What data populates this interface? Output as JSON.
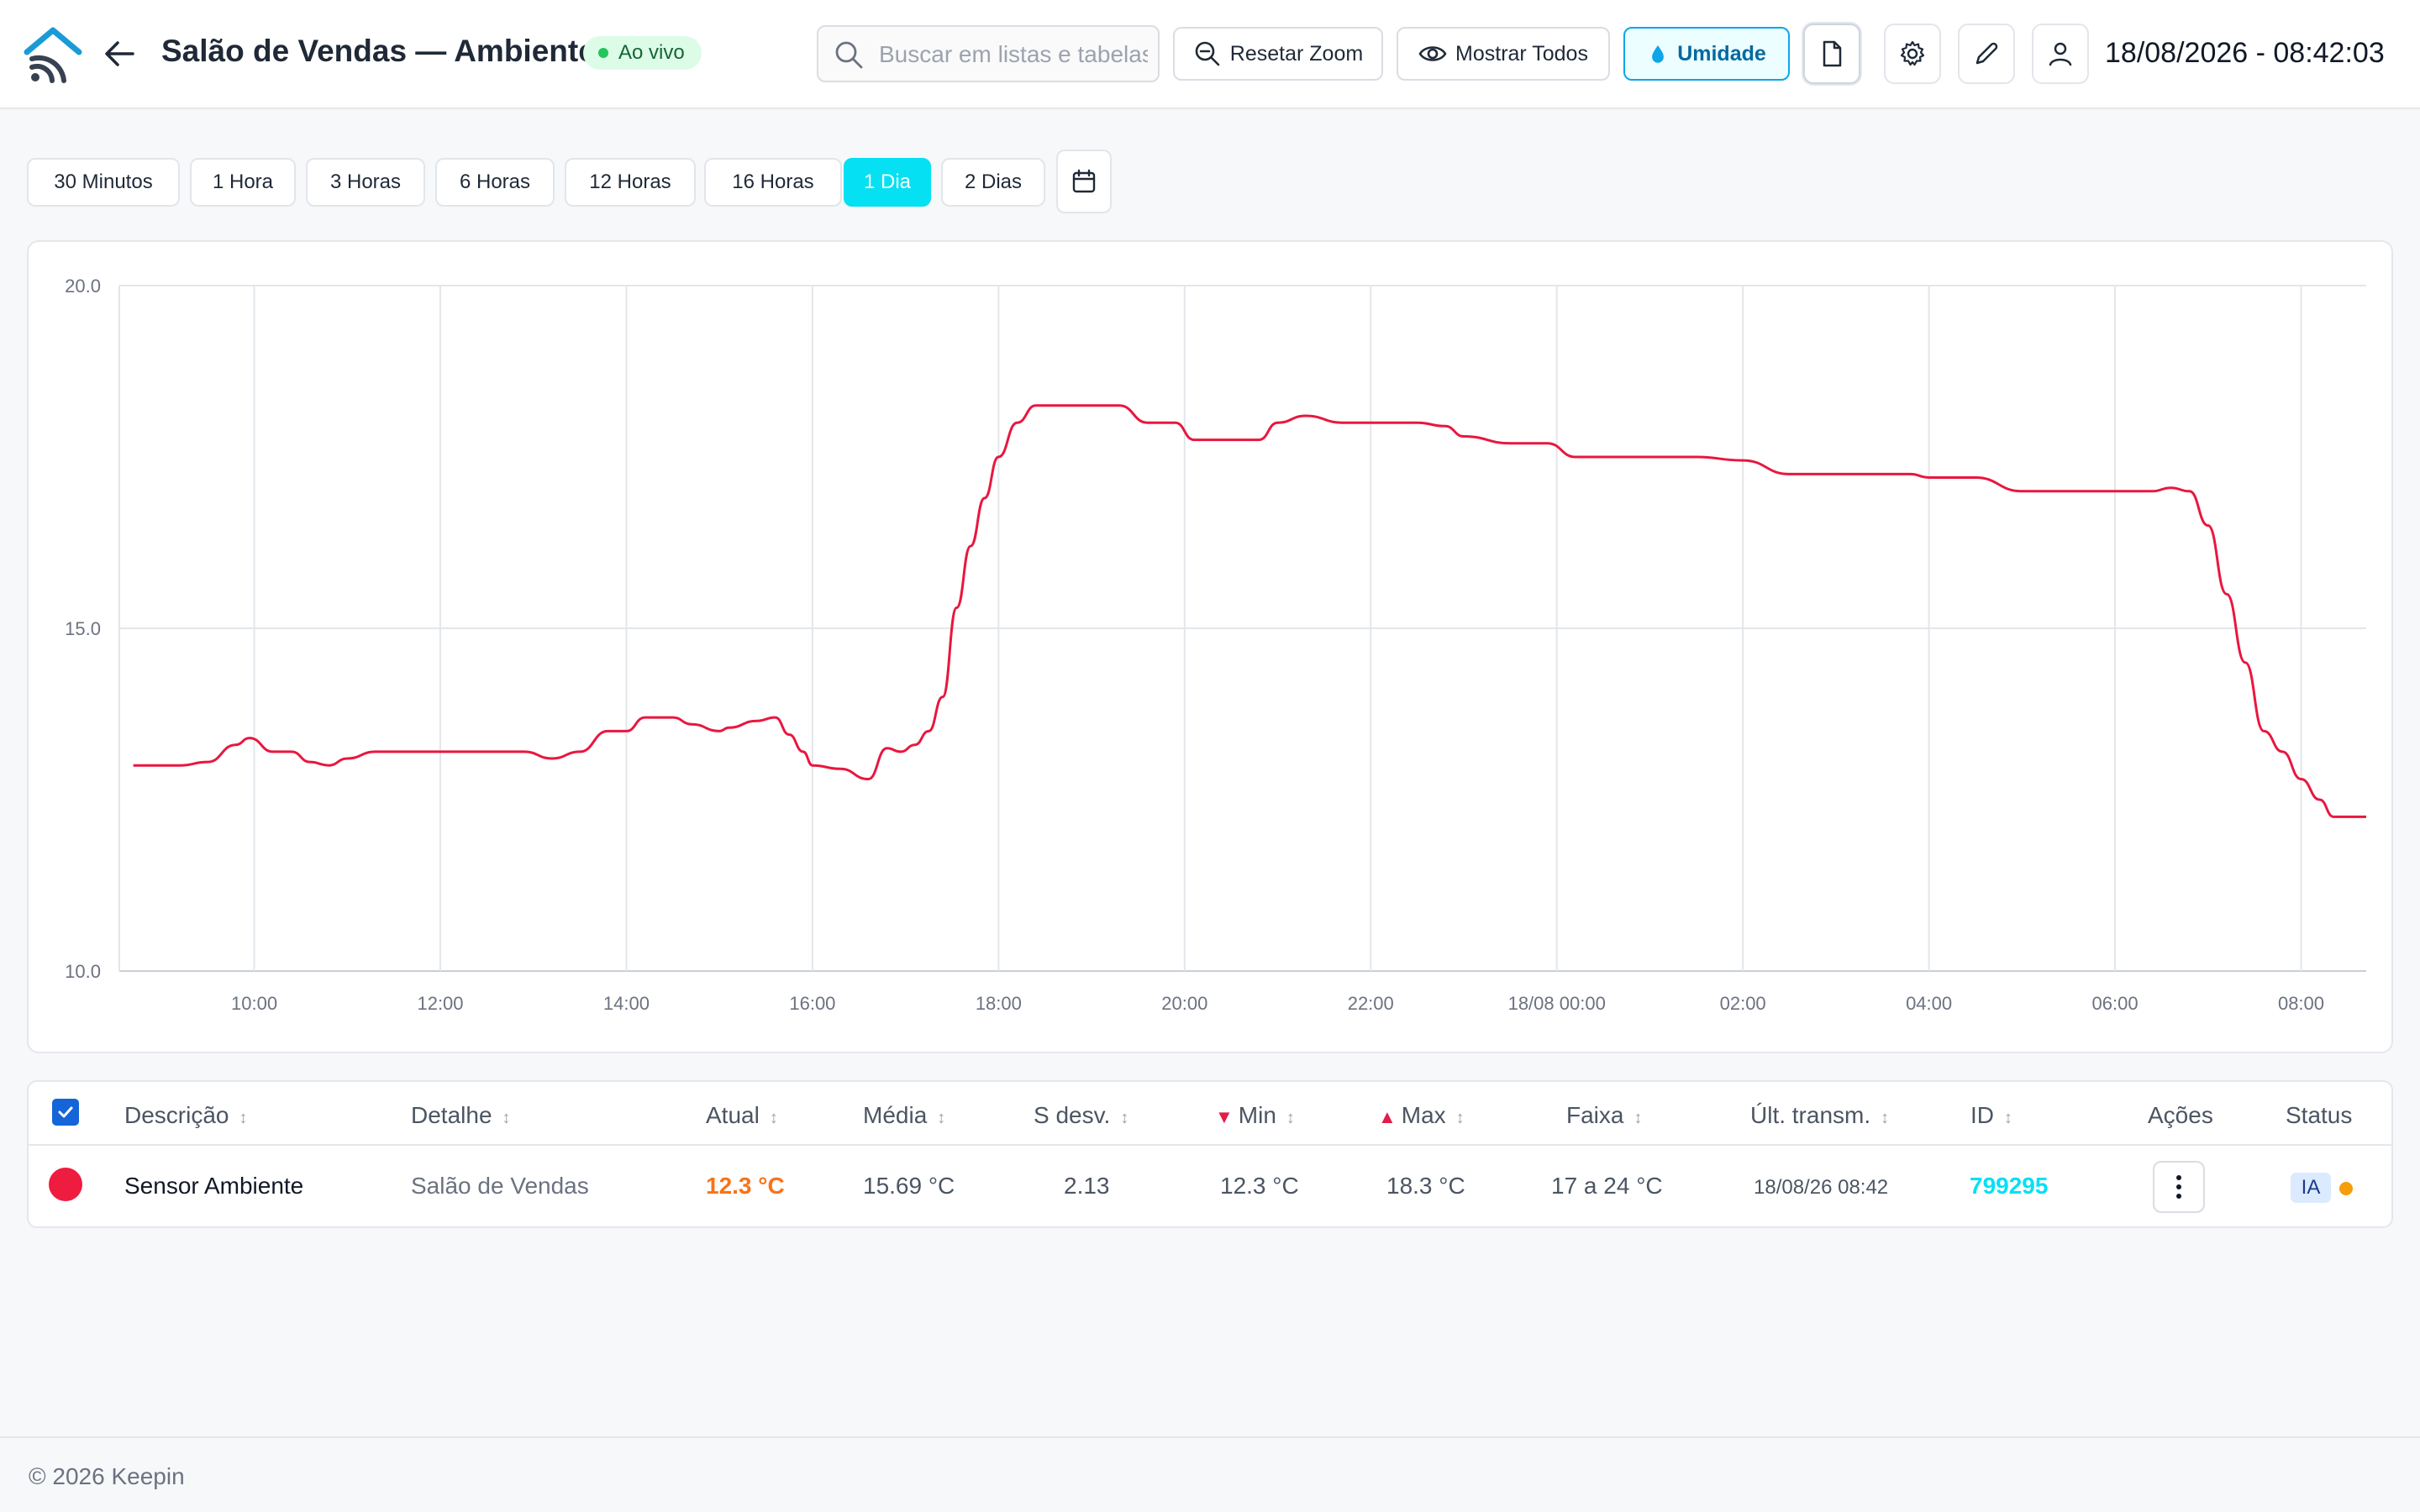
{
  "header": {
    "title": "Salão de Vendas — Ambiente",
    "live_label": "Ao vivo",
    "search_placeholder": "Buscar em listas e tabelas",
    "reset_zoom": "Resetar Zoom",
    "show_all": "Mostrar Todos",
    "humidity": "Umidade",
    "datetime": "18/08/2026 - 08:42:03",
    "colors": {
      "accent": "#06e0f3",
      "brand": "#1a9bd7"
    }
  },
  "ranges": {
    "items": [
      "30 Minutos",
      "1 Hora",
      "3 Horas",
      "6 Horas",
      "12 Horas",
      "16 Horas",
      "1 Dia",
      "2 Dias"
    ],
    "active": "1 Dia"
  },
  "chart_data": {
    "type": "line",
    "title": "",
    "xlabel": "",
    "ylabel": "",
    "ylim": [
      10.0,
      20.0
    ],
    "yticks": [
      "10.0",
      "15.0",
      "20.0"
    ],
    "xticks": [
      "10:00",
      "12:00",
      "14:00",
      "16:00",
      "18:00",
      "20:00",
      "22:00",
      "18/08 00:00",
      "02:00",
      "04:00",
      "06:00",
      "08:00"
    ],
    "xtick_hours": [
      10,
      12,
      14,
      16,
      18,
      20,
      22,
      24,
      26,
      28,
      30,
      32
    ],
    "xlim_hours": [
      8.55,
      32.7
    ],
    "grid": true,
    "series": [
      {
        "color": "#e8173f",
        "x_hours": [
          8.7,
          9.2,
          9.5,
          9.8,
          9.95,
          10.2,
          10.4,
          10.6,
          10.8,
          11.0,
          11.3,
          11.5,
          11.7,
          12.0,
          12.5,
          12.9,
          13.2,
          13.5,
          13.8,
          14.0,
          14.2,
          14.5,
          14.7,
          15.0,
          15.1,
          15.4,
          15.6,
          15.75,
          15.9,
          16.0,
          16.3,
          16.6,
          16.8,
          16.95,
          17.1,
          17.25,
          17.4,
          17.55,
          17.7,
          17.85,
          18.0,
          18.2,
          18.4,
          18.7,
          19.0,
          19.3,
          19.6,
          19.9,
          20.1,
          20.4,
          20.8,
          21.0,
          21.3,
          21.7,
          22.2,
          22.5,
          22.8,
          23.0,
          23.5,
          23.9,
          24.2,
          24.6,
          25.0,
          25.5,
          26.0,
          26.5,
          27.0,
          27.5,
          27.8,
          28.0,
          28.5,
          29.0,
          29.5,
          30.0,
          30.2,
          30.4,
          30.6,
          30.8,
          31.0,
          31.2,
          31.4,
          31.6,
          31.8,
          32.0,
          32.2,
          32.35,
          32.7
        ],
        "values": [
          13.0,
          13.0,
          13.05,
          13.3,
          13.4,
          13.2,
          13.2,
          13.05,
          13.0,
          13.1,
          13.2,
          13.2,
          13.2,
          13.2,
          13.2,
          13.2,
          13.1,
          13.2,
          13.5,
          13.5,
          13.7,
          13.7,
          13.6,
          13.5,
          13.55,
          13.65,
          13.7,
          13.45,
          13.2,
          13.0,
          12.95,
          12.8,
          13.25,
          13.2,
          13.3,
          13.5,
          14.0,
          15.3,
          16.2,
          16.9,
          17.5,
          18.0,
          18.25,
          18.25,
          18.25,
          18.25,
          18.0,
          18.0,
          17.75,
          17.75,
          17.75,
          18.0,
          18.1,
          18.0,
          18.0,
          18.0,
          17.95,
          17.8,
          17.7,
          17.7,
          17.5,
          17.5,
          17.5,
          17.5,
          17.45,
          17.25,
          17.25,
          17.25,
          17.25,
          17.2,
          17.2,
          17.0,
          17.0,
          17.0,
          17.0,
          17.0,
          17.05,
          17.0,
          16.5,
          15.5,
          14.5,
          13.5,
          13.2,
          12.8,
          12.5,
          12.25,
          12.25
        ]
      }
    ]
  },
  "table": {
    "headers": [
      "Descrição",
      "Detalhe",
      "Atual",
      "Média",
      "S desv.",
      "Min",
      "Max",
      "Faixa",
      "Últ. transm.",
      "ID",
      "Ações",
      "Status"
    ],
    "sort_icon": "↕",
    "min_marker": "▼",
    "max_marker": "▲",
    "row": {
      "descricao": "Sensor Ambiente",
      "detalhe": "Salão de Vendas",
      "atual": "12.3 °C",
      "media": "15.69 °C",
      "sdesv": "2.13",
      "min": "12.3 °C",
      "max": "18.3 °C",
      "faixa": "17 a 24 °C",
      "ult_transm": "18/08/26 08:42",
      "id": "799295",
      "status_badge": "IA",
      "status_color": "#ee1c3f"
    }
  },
  "footer": {
    "text": "© 2026 Keepin"
  }
}
